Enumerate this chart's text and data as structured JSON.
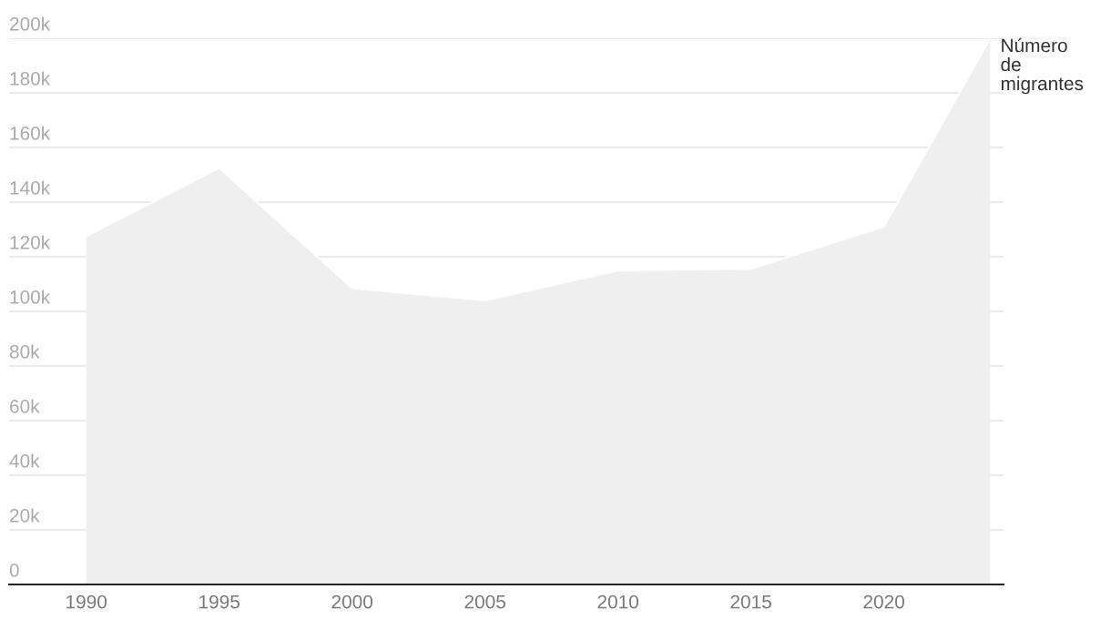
{
  "chart_data": {
    "type": "area",
    "x": [
      1990,
      1995,
      2000,
      2005,
      2010,
      2015,
      2020,
      2024
    ],
    "series": [
      {
        "name": "Número de migrantes",
        "color": "#efefef",
        "values": [
          127500,
          152500,
          108500,
          104000,
          115000,
          115600,
          131000,
          200000
        ]
      }
    ],
    "xlim": [
      1987.1,
      2024.5
    ],
    "xticks": [
      1990,
      1995,
      2000,
      2005,
      2010,
      2015,
      2020
    ],
    "ylim": [
      0,
      200000
    ],
    "yticks": [
      {
        "value": 0,
        "label": "0"
      },
      {
        "value": 20000,
        "label": "20k"
      },
      {
        "value": 40000,
        "label": "40k"
      },
      {
        "value": 60000,
        "label": "60k"
      },
      {
        "value": 80000,
        "label": "80k"
      },
      {
        "value": 100000,
        "label": "100k"
      },
      {
        "value": 120000,
        "label": "120k"
      },
      {
        "value": 140000,
        "label": "140k"
      },
      {
        "value": 160000,
        "label": "160k"
      },
      {
        "value": 180000,
        "label": "180k"
      },
      {
        "value": 200000,
        "label": "200k"
      }
    ],
    "grid": "y",
    "legend": false
  }
}
